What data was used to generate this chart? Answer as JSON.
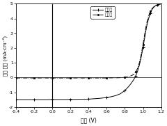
{
  "title": "",
  "xlabel": "出压 (V)",
  "ylabel": "电流 密度 (mA·cm⁻²)",
  "xlim": [
    -0.4,
    1.2
  ],
  "ylim": [
    -2,
    5
  ],
  "xticks": [
    -0.4,
    -0.2,
    0.0,
    0.2,
    0.4,
    0.6,
    0.8,
    1.0,
    1.2
  ],
  "yticks": [
    -2,
    -1,
    0,
    1,
    2,
    3,
    4,
    5
  ],
  "legend_labels": [
    "光照下",
    "黑暗中"
  ],
  "vline_x": 0.0,
  "hline_y": 0.0,
  "background": "#ffffff",
  "line_color": "#000000",
  "illuminated_x": [
    -0.4,
    -0.35,
    -0.3,
    -0.25,
    -0.2,
    -0.15,
    -0.1,
    -0.05,
    0.0,
    0.05,
    0.1,
    0.15,
    0.2,
    0.25,
    0.3,
    0.35,
    0.4,
    0.45,
    0.5,
    0.55,
    0.6,
    0.65,
    0.7,
    0.75,
    0.8,
    0.85,
    0.88,
    0.9,
    0.92,
    0.94,
    0.96,
    0.98,
    1.0,
    1.02,
    1.04,
    1.06,
    1.08,
    1.1,
    1.12,
    1.14,
    1.16,
    1.18,
    1.2
  ],
  "illuminated_y": [
    -1.5,
    -1.5,
    -1.5,
    -1.5,
    -1.5,
    -1.5,
    -1.5,
    -1.5,
    -1.49,
    -1.49,
    -1.49,
    -1.49,
    -1.48,
    -1.48,
    -1.47,
    -1.47,
    -1.46,
    -1.44,
    -1.42,
    -1.39,
    -1.35,
    -1.3,
    -1.22,
    -1.1,
    -0.88,
    -0.55,
    -0.3,
    -0.12,
    0.12,
    0.42,
    0.85,
    1.38,
    2.05,
    2.75,
    3.45,
    3.95,
    4.35,
    4.62,
    4.78,
    4.88,
    4.93,
    4.97,
    5.0
  ],
  "dark_x": [
    -0.4,
    -0.35,
    -0.3,
    -0.25,
    -0.2,
    -0.15,
    -0.1,
    -0.05,
    0.0,
    0.05,
    0.1,
    0.15,
    0.2,
    0.25,
    0.3,
    0.35,
    0.4,
    0.45,
    0.5,
    0.55,
    0.6,
    0.65,
    0.7,
    0.75,
    0.8,
    0.84,
    0.87,
    0.9,
    0.92,
    0.94,
    0.96,
    0.98,
    1.0,
    1.02,
    1.04,
    1.06,
    1.08,
    1.1,
    1.12,
    1.14,
    1.16,
    1.18,
    1.2
  ],
  "dark_y": [
    -0.03,
    -0.03,
    -0.03,
    -0.03,
    -0.03,
    -0.03,
    -0.03,
    -0.03,
    -0.03,
    -0.03,
    -0.03,
    -0.03,
    -0.03,
    -0.03,
    -0.03,
    -0.03,
    -0.03,
    -0.03,
    -0.03,
    -0.03,
    -0.03,
    -0.02,
    -0.02,
    -0.01,
    0.02,
    0.06,
    0.12,
    0.22,
    0.38,
    0.62,
    1.0,
    1.55,
    2.25,
    3.0,
    3.68,
    4.15,
    4.48,
    4.68,
    4.8,
    4.87,
    4.92,
    4.96,
    5.0
  ]
}
